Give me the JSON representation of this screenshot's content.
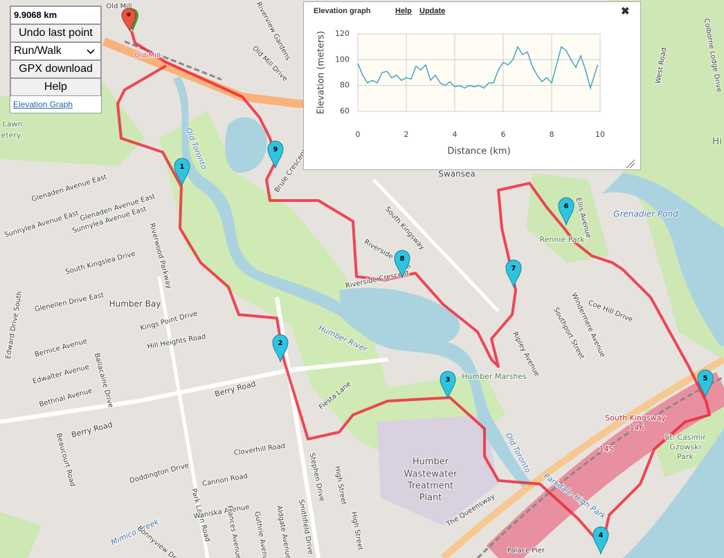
{
  "controls": {
    "distance": "9.9068 km",
    "undo": "Undo last point",
    "mode": "Run/Walk",
    "gpx": "GPX download",
    "help": "Help",
    "elevation_link": "Elevation Graph"
  },
  "elevation_panel": {
    "title": "Elevation graph",
    "help": "Help",
    "update": "Update",
    "close": "✖",
    "chart_data": {
      "type": "line",
      "x_label": "Distance (km)",
      "y_label": "Elevation (meters)",
      "x": [
        0,
        0.2,
        0.4,
        0.6,
        0.8,
        1.0,
        1.2,
        1.4,
        1.6,
        1.8,
        2.0,
        2.2,
        2.4,
        2.6,
        2.8,
        3.0,
        3.2,
        3.4,
        3.6,
        3.8,
        4.0,
        4.2,
        4.4,
        4.6,
        4.8,
        5.0,
        5.2,
        5.4,
        5.6,
        5.8,
        6.0,
        6.2,
        6.4,
        6.6,
        6.8,
        7.0,
        7.2,
        7.4,
        7.6,
        7.8,
        8.0,
        8.2,
        8.4,
        8.6,
        8.8,
        9.0,
        9.2,
        9.4,
        9.6,
        9.8,
        9.9
      ],
      "values": [
        97,
        88,
        82,
        84,
        82,
        90,
        91,
        86,
        88,
        84,
        86,
        85,
        95,
        92,
        96,
        84,
        88,
        82,
        80,
        83,
        79,
        80,
        78,
        80,
        79,
        80,
        78,
        82,
        82,
        92,
        98,
        96,
        100,
        110,
        104,
        106,
        95,
        88,
        83,
        86,
        82,
        96,
        110,
        107,
        100,
        94,
        103,
        92,
        78,
        90,
        96
      ],
      "color": "#4aa8c8",
      "xlim": [
        0,
        10
      ],
      "xticks": [
        0,
        2,
        4,
        6,
        8,
        10
      ],
      "ylim": [
        60,
        120
      ],
      "yticks": [
        60,
        80,
        100,
        120
      ],
      "grid": true
    }
  },
  "markers": [
    "1",
    "2",
    "3",
    "4",
    "5",
    "6",
    "7",
    "8",
    "9"
  ],
  "map_labels": [
    "Old Mill",
    "Old Mill",
    "Lawn",
    "etery",
    "Riverview Gardens",
    "Old Mill Drive",
    "Old Toronto",
    "Brule Crescent",
    "Swansea",
    "Glenaden Avenue East",
    "Glenaden Avenue East",
    "Sunnylea Avenue East",
    "Sunnylea Avenue East",
    "Riverwood Parkway",
    "South Kingsway",
    "Riverside Drive",
    "Riverside Crescent",
    "South Kingslea Drive",
    "Glenellen Drive East",
    "Humber Bay",
    "Kings Point Drive",
    "Hill Heights Road",
    "Bernice Avenue",
    "Edward Drive South",
    "Edwalter Avenue",
    "Ballacaine Drive",
    "Bethnal Avenue",
    "Berry Road",
    "Berry Road",
    "Humber River",
    "Fiesta Lane",
    "Humber Marshes",
    "Ripley Avenue",
    "Southport Street",
    "Windermere Avenue",
    "Coe Hill Drive",
    "Ellis Avenue",
    "Rennie Park",
    "Grenadier Pond",
    "West Road",
    "Colborne Lodge Drive",
    "South Kingsway",
    "146",
    "145",
    "St. Casimir",
    "Gzowski",
    "Park",
    "Humber",
    "Wastewater",
    "Treatment",
    "Plant",
    "Old Toronto",
    "The Queensway",
    "Parkdale–High Park",
    "Palace Pier",
    "Stephen Drive",
    "High Street",
    "High Street",
    "Cloverhill Road",
    "Cannon Road",
    "Doddington Drive",
    "Beaucourt Road",
    "Park Lawn Road",
    "Waniska Avenue",
    "Frances Avenue",
    "Guthrie Avenue",
    "Aldgate Avenue",
    "Smithfield Drive",
    "Mimico Creek",
    "Bonnyview Drive",
    "Hi"
  ]
}
